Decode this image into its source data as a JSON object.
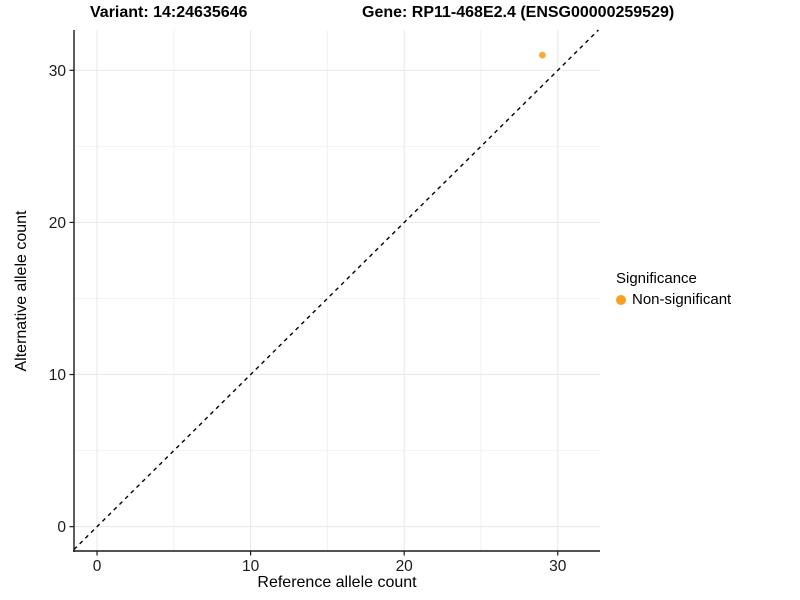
{
  "titles": {
    "variant": "Variant: 14:24635646",
    "gene": "Gene: RP11-468E2.4 (ENSG00000259529)"
  },
  "chart_data": {
    "type": "scatter",
    "xlabel": "Reference allele count",
    "ylabel": "Alternative allele count",
    "xlim": [
      -1.5,
      32.75
    ],
    "ylim": [
      -1.6,
      32.65
    ],
    "xticks": [
      0,
      10,
      20,
      30
    ],
    "yticks": [
      0,
      10,
      20,
      30
    ],
    "xminor": [
      5,
      15,
      25
    ],
    "yminor": [
      5,
      15,
      25
    ],
    "grid": true,
    "points": [
      {
        "x": 29,
        "y": 31,
        "series": "Non-significant"
      }
    ],
    "identity_line": {
      "type": "y=x",
      "style": "dashed",
      "color": "#000000"
    },
    "legend": {
      "title": "Significance",
      "position": "right",
      "entries": [
        {
          "label": "Non-significant",
          "color": "#F9A01E"
        }
      ]
    }
  },
  "colors": {
    "point": "#F9A01E",
    "grid_major": "#E7E7E7",
    "grid_minor": "#F2F2F2",
    "axis_line": "#1A1A1A",
    "tick_text": "#1A1A1A",
    "background": "#FFFFFF"
  }
}
